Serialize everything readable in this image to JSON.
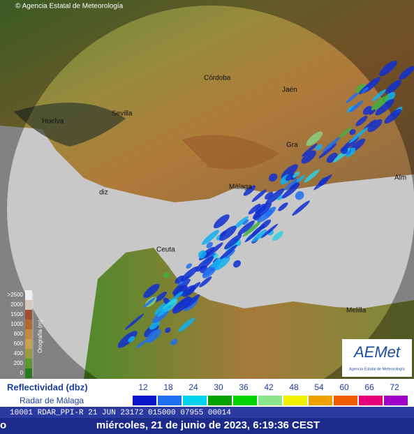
{
  "header": {
    "copyright": "© Agencia Estatal de Meteorología"
  },
  "map": {
    "cities": [
      "Córdoba",
      "Jaén",
      "Sevilla",
      "Huelva",
      "Gra",
      "Málaga",
      "diz",
      "Ceuta",
      "Melilla",
      "Alm"
    ]
  },
  "orography_legend": {
    "title": "Orografía (m)",
    "labels": [
      ">2500",
      2000,
      1500,
      1000,
      800,
      600,
      400,
      200,
      0
    ]
  },
  "reflectivity_legend": {
    "title": "Reflectividad (dbz)",
    "radar": "Radar de Málaga",
    "levels": [
      12,
      18,
      24,
      30,
      36,
      42,
      48,
      54,
      60,
      66,
      72
    ]
  },
  "info_line": "10001 RDAR_PPI-R   21 JUN 23172 015000 07955 00014",
  "footer": {
    "left": "o",
    "date": "miércoles, 21 de junio de 2023, 6:19:36 CEST"
  },
  "logo": {
    "name": "AEMet",
    "org": "Agencia Estatal de Meteorología"
  }
}
